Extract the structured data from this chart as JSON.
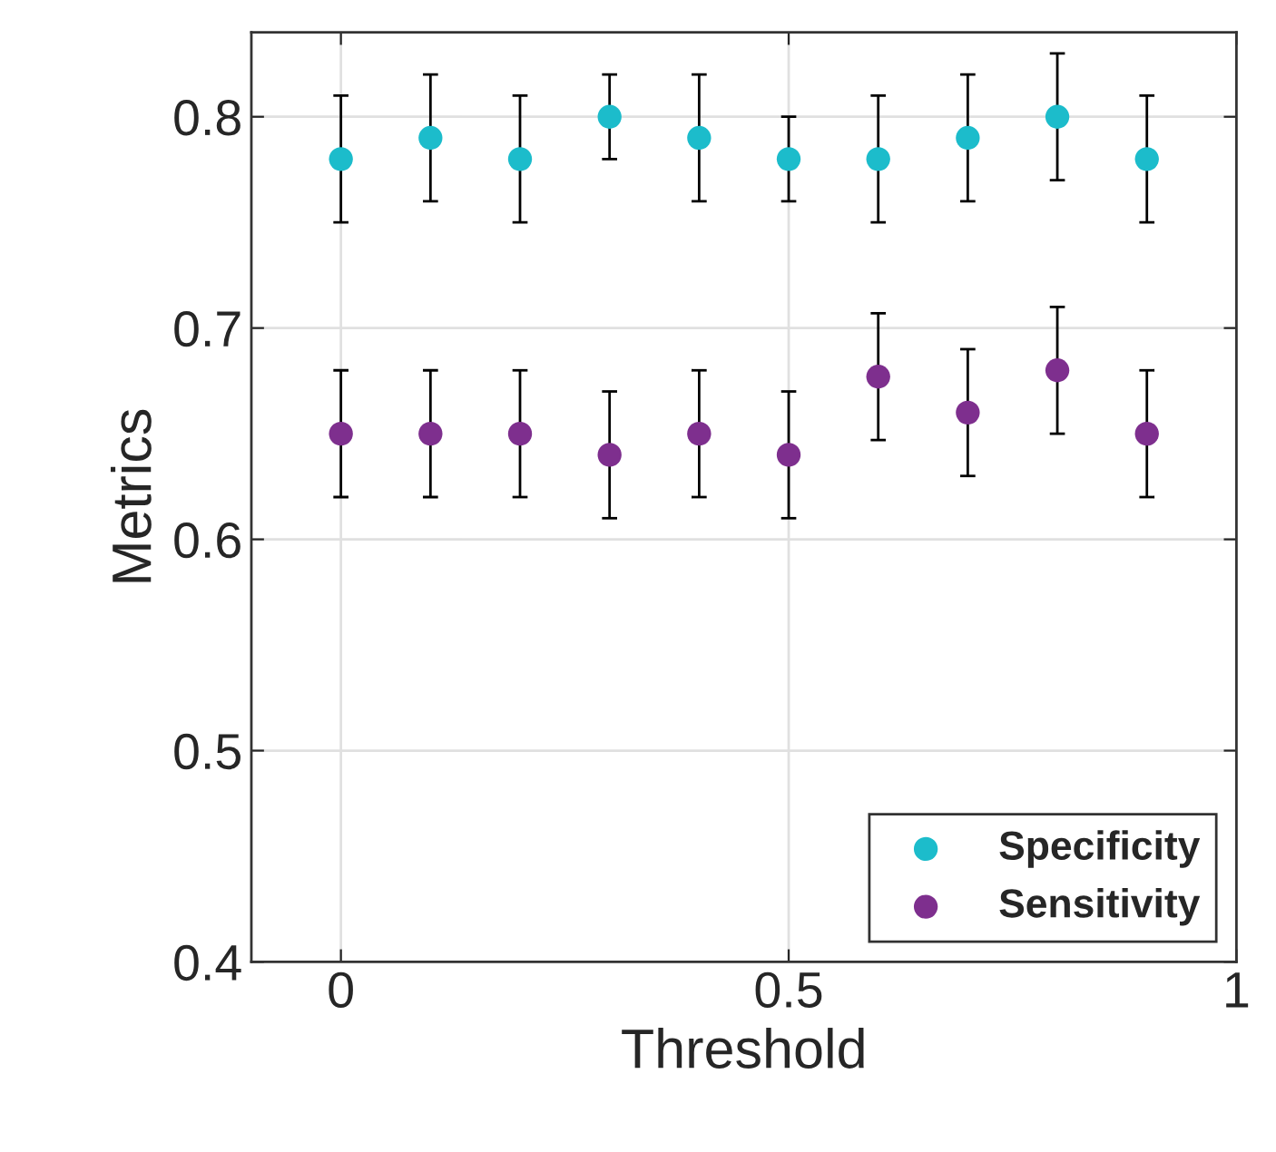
{
  "chart_data": {
    "type": "scatter",
    "xlabel": "Threshold",
    "ylabel": "Metrics",
    "x": [
      0,
      0.1,
      0.2,
      0.3,
      0.4,
      0.5,
      0.6,
      0.7,
      0.8,
      0.9
    ],
    "series": [
      {
        "name": "Specificity",
        "color": "#1cbccb",
        "values": [
          0.78,
          0.79,
          0.78,
          0.8,
          0.79,
          0.78,
          0.78,
          0.79,
          0.8,
          0.78
        ],
        "errors": [
          0.03,
          0.03,
          0.03,
          0.02,
          0.03,
          0.02,
          0.03,
          0.03,
          0.03,
          0.03
        ]
      },
      {
        "name": "Sensitivity",
        "color": "#7e2f8e",
        "values": [
          0.65,
          0.65,
          0.65,
          0.64,
          0.65,
          0.64,
          0.677,
          0.66,
          0.68,
          0.65
        ],
        "errors": [
          0.03,
          0.03,
          0.03,
          0.03,
          0.03,
          0.03,
          0.03,
          0.03,
          0.03,
          0.03
        ]
      }
    ],
    "xlim": [
      -0.1,
      1
    ],
    "xticks": [
      0,
      0.5,
      1
    ],
    "ylim": [
      0.4,
      0.84
    ],
    "yticks": [
      0.4,
      0.5,
      0.6,
      0.7,
      0.8
    ],
    "grid": true,
    "legend": "bottom right",
    "marker": "circle"
  }
}
